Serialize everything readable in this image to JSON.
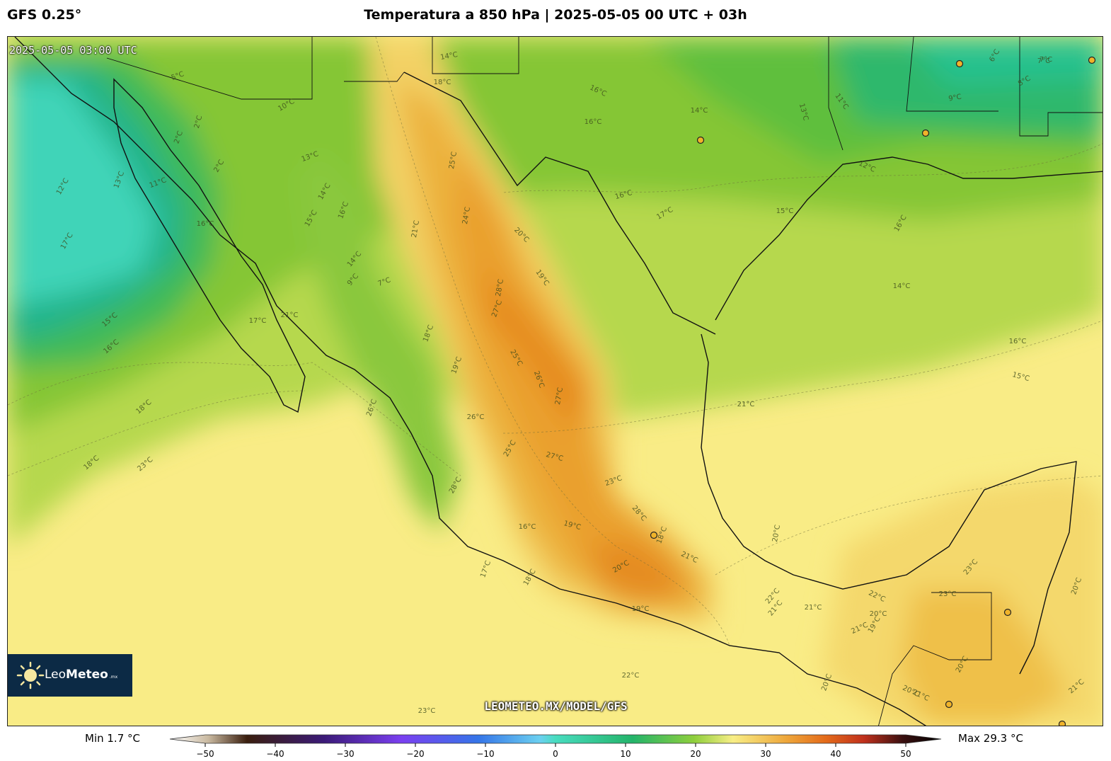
{
  "header": {
    "model": "GFS 0.25°",
    "title": "Temperatura a 850 hPa | 2025-05-05 00 UTC + 03h"
  },
  "map": {
    "valid_time": "2025-05-05 03:00 UTC",
    "watermark": "LEOMETEO.MX/MODEL/GFS",
    "logo": {
      "brand_light": "Leo",
      "brand_bold": "Meteo",
      "suffix": ".mx",
      "icon": "sun-icon"
    },
    "contour_labels": [
      "14°C",
      "18°C",
      "16°C",
      "14°C",
      "13°C",
      "11°C",
      "7°C",
      "6°C",
      "7°C",
      "8°C",
      "9°C",
      "12°C",
      "25°C",
      "24°C",
      "21°C",
      "20°C",
      "19°C",
      "28°C",
      "27°C",
      "25°C",
      "26°C",
      "27°C",
      "18°C",
      "19°C",
      "16°C",
      "16°C",
      "17°C",
      "15°C",
      "16°C",
      "14°C",
      "16°C",
      "15°C",
      "13°C",
      "14°C",
      "16°C",
      "15°C",
      "14°C",
      "9°C",
      "7°C",
      "10°C",
      "5°C",
      "2°C",
      "2°C",
      "2°C",
      "11°C",
      "12°C",
      "13°C",
      "17°C",
      "16°C",
      "15°C",
      "16°C",
      "17°C",
      "21°C",
      "18°C",
      "18°C",
      "23°C",
      "26°C",
      "26°C",
      "28°C",
      "25°C",
      "27°C",
      "23°C",
      "21°C",
      "28°C",
      "20°C",
      "18°C",
      "19°C",
      "16°C",
      "17°C",
      "18°C",
      "19°C",
      "21°C",
      "20°C",
      "22°C",
      "21°C",
      "22°C",
      "23°C",
      "23°C",
      "20°C",
      "20°C",
      "19°C",
      "20°C",
      "21°C",
      "21°C",
      "21°C",
      "20°C",
      "20°C",
      "22°C",
      "23°C",
      "21°C"
    ],
    "city_marker_icon": "city-dot-icon",
    "colors": {
      "land_warm": "#f9ec86",
      "ocean_cool": "#48dcbf",
      "peak": "#ea9422"
    }
  },
  "colorbar": {
    "min_label": "Min 1.7 °C",
    "max_label": "Max 29.3 °C",
    "ticks": [
      "−50",
      "−40",
      "−30",
      "−20",
      "−10",
      "0",
      "10",
      "20",
      "30",
      "40",
      "50"
    ],
    "range": [
      -50,
      50
    ]
  }
}
